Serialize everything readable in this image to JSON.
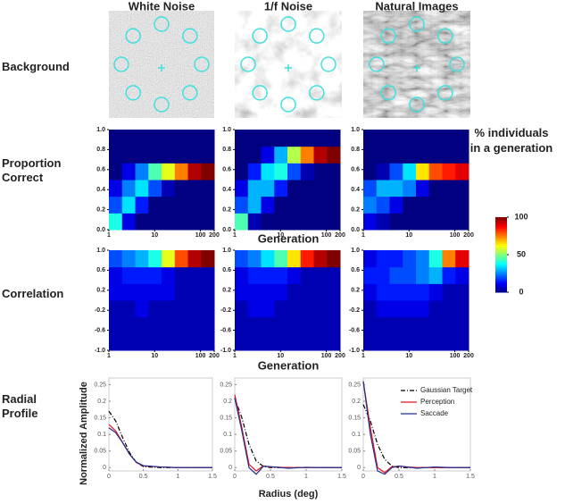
{
  "figure": {
    "columns": [
      "White Noise",
      "1/f Noise",
      "Natural Images"
    ],
    "rows": [
      [
        "Background"
      ],
      [
        "Proportion",
        "Correct"
      ],
      [
        "Correlation"
      ],
      [
        "Radial",
        "Profile"
      ]
    ],
    "generation_labels": [
      "Generation",
      "Generation"
    ]
  },
  "chart_data": [
    {
      "type": "heatmap",
      "xscale": "log",
      "xlim": [
        1,
        200
      ],
      "xticks": [
        1,
        10,
        100,
        200
      ],
      "ylim": [
        0,
        1
      ],
      "yticks": [
        {
          "value": 0,
          "label": "0.0"
        },
        0.2,
        0.4,
        0.6,
        0.8,
        {
          "value": 1,
          "label": "1.0"
        }
      ],
      "zlim": [
        0,
        100
      ],
      "colormap": "jet",
      "z": [
        [
          40,
          10,
          0,
          0,
          0,
          0,
          0,
          0
        ],
        [
          20,
          35,
          15,
          0,
          0,
          0,
          0,
          0
        ],
        [
          10,
          25,
          35,
          20,
          5,
          0,
          0,
          0
        ],
        [
          0,
          10,
          25,
          45,
          60,
          75,
          95,
          100
        ],
        [
          0,
          0,
          0,
          0,
          0,
          0,
          0,
          0
        ],
        [
          0,
          0,
          0,
          0,
          0,
          0,
          0,
          0
        ]
      ]
    },
    {
      "type": "heatmap",
      "xscale": "log",
      "xlim": [
        1,
        200
      ],
      "xticks": [
        1,
        10,
        100,
        200
      ],
      "ylim": [
        0,
        1
      ],
      "yticks": [
        {
          "value": 0,
          "label": "0.0"
        },
        0.2,
        0.4,
        0.6,
        0.8,
        {
          "value": 1,
          "label": "1.0"
        }
      ],
      "zlim": [
        0,
        100
      ],
      "colormap": "jet",
      "z": [
        [
          45,
          5,
          0,
          0,
          0,
          0,
          0,
          0
        ],
        [
          20,
          30,
          10,
          0,
          0,
          0,
          0,
          0
        ],
        [
          10,
          30,
          30,
          15,
          0,
          0,
          0,
          0
        ],
        [
          0,
          15,
          35,
          40,
          20,
          5,
          0,
          0
        ],
        [
          0,
          0,
          10,
          30,
          55,
          75,
          95,
          100
        ],
        [
          0,
          0,
          0,
          0,
          0,
          0,
          0,
          0
        ]
      ]
    },
    {
      "type": "heatmap",
      "xscale": "log",
      "xlim": [
        1,
        200
      ],
      "xticks": [
        1,
        10,
        100,
        200
      ],
      "ylim": [
        0,
        1
      ],
      "yticks": [
        {
          "value": 0,
          "label": "0.0"
        },
        0.2,
        0.4,
        0.6,
        0.8,
        {
          "value": 1,
          "label": "1.0"
        }
      ],
      "zlim": [
        0,
        100
      ],
      "colormap": "jet",
      "z": [
        [
          10,
          5,
          0,
          0,
          0,
          0,
          0,
          0
        ],
        [
          25,
          20,
          10,
          0,
          0,
          0,
          0,
          0
        ],
        [
          20,
          30,
          30,
          25,
          10,
          0,
          0,
          0
        ],
        [
          0,
          5,
          20,
          35,
          65,
          80,
          85,
          90
        ],
        [
          0,
          0,
          0,
          0,
          0,
          0,
          0,
          0
        ],
        [
          0,
          0,
          0,
          0,
          0,
          0,
          0,
          0
        ]
      ]
    },
    {
      "type": "heatmap",
      "xscale": "log",
      "xlim": [
        1,
        200
      ],
      "xticks": [
        1,
        10,
        100,
        200
      ],
      "ylim": [
        -1,
        1
      ],
      "yticks": [
        {
          "value": -1,
          "label": "-1.0"
        },
        -0.6,
        -0.2,
        0.2,
        0.6,
        {
          "value": 1,
          "label": "1.0"
        }
      ],
      "zlim": [
        0,
        100
      ],
      "colormap": "jet",
      "z": [
        [
          5,
          5,
          5,
          5,
          5,
          5,
          5,
          5
        ],
        [
          5,
          5,
          5,
          5,
          5,
          5,
          5,
          5
        ],
        [
          5,
          5,
          10,
          5,
          5,
          5,
          5,
          5
        ],
        [
          10,
          10,
          10,
          10,
          10,
          5,
          5,
          5
        ],
        [
          10,
          15,
          15,
          15,
          10,
          5,
          5,
          5
        ],
        [
          20,
          25,
          30,
          40,
          60,
          80,
          95,
          100
        ]
      ]
    },
    {
      "type": "heatmap",
      "xscale": "log",
      "xlim": [
        1,
        200
      ],
      "xticks": [
        1,
        10,
        100,
        200
      ],
      "ylim": [
        -1,
        1
      ],
      "yticks": [
        {
          "value": -1,
          "label": "-1.0"
        },
        -0.6,
        -0.2,
        0.2,
        0.6,
        {
          "value": 1,
          "label": "1.0"
        }
      ],
      "zlim": [
        0,
        100
      ],
      "colormap": "jet",
      "z": [
        [
          5,
          5,
          5,
          5,
          5,
          5,
          5,
          5
        ],
        [
          5,
          5,
          5,
          5,
          5,
          5,
          5,
          5
        ],
        [
          5,
          10,
          10,
          5,
          5,
          5,
          5,
          5
        ],
        [
          10,
          10,
          10,
          10,
          5,
          5,
          5,
          5
        ],
        [
          10,
          15,
          15,
          15,
          10,
          5,
          5,
          5
        ],
        [
          20,
          25,
          35,
          45,
          65,
          85,
          95,
          100
        ]
      ]
    },
    {
      "type": "heatmap",
      "xscale": "log",
      "xlim": [
        1,
        200
      ],
      "xticks": [
        1,
        10,
        100,
        200
      ],
      "ylim": [
        -1,
        1
      ],
      "yticks": [
        {
          "value": -1,
          "label": "-1.0"
        },
        -0.6,
        -0.2,
        0.2,
        0.6,
        {
          "value": 1,
          "label": "1.0"
        }
      ],
      "zlim": [
        0,
        100
      ],
      "colormap": "jet",
      "z": [
        [
          5,
          5,
          5,
          5,
          5,
          5,
          5,
          5
        ],
        [
          5,
          5,
          5,
          5,
          5,
          5,
          5,
          5
        ],
        [
          5,
          10,
          10,
          10,
          10,
          5,
          5,
          5
        ],
        [
          10,
          15,
          15,
          15,
          15,
          10,
          5,
          5
        ],
        [
          15,
          15,
          20,
          20,
          25,
          30,
          15,
          10
        ],
        [
          10,
          15,
          15,
          20,
          25,
          40,
          75,
          90
        ]
      ]
    },
    {
      "type": "line",
      "ylabel": "Normalized Amplitude",
      "xlim": [
        0,
        1.5
      ],
      "xticks": [
        0,
        0.5,
        1,
        1.5
      ],
      "ylim": [
        -0.01,
        0.27
      ],
      "yticks": [
        0,
        0.05,
        0.1,
        0.15,
        0.2,
        0.25
      ],
      "x": [
        0,
        0.1,
        0.2,
        0.3,
        0.4,
        0.5,
        0.75,
        1,
        1.25,
        1.5
      ],
      "series": [
        {
          "color": "#000000",
          "dash": true,
          "values": [
            0.17,
            0.14,
            0.09,
            0.045,
            0.015,
            0.003,
            0,
            0,
            0,
            0
          ]
        },
        {
          "color": "#e8141e",
          "values": [
            0.13,
            0.11,
            0.075,
            0.04,
            0.015,
            0.005,
            0.002,
            0,
            0,
            0
          ]
        },
        {
          "color": "#1f2f8f",
          "values": [
            0.12,
            0.105,
            0.075,
            0.04,
            0.016,
            0.006,
            0.002,
            0,
            0,
            0
          ]
        }
      ]
    },
    {
      "type": "line",
      "xlabel": "Radius (deg)",
      "xlim": [
        0,
        1.5
      ],
      "xticks": [
        0,
        0.5,
        1,
        1.5
      ],
      "ylim": [
        -0.01,
        0.27
      ],
      "yticks": [
        0,
        0.05,
        0.1,
        0.15,
        0.2,
        0.25
      ],
      "x": [
        0,
        0.1,
        0.2,
        0.3,
        0.4,
        0.5,
        0.75,
        1,
        1.25,
        1.5
      ],
      "series": [
        {
          "color": "#000000",
          "dash": true,
          "values": [
            0.21,
            0.15,
            0.07,
            0.02,
            0.004,
            0,
            0,
            0,
            0,
            0
          ]
        },
        {
          "color": "#e8141e",
          "values": [
            0.22,
            0.12,
            0.01,
            -0.01,
            0.005,
            0.002,
            0,
            0,
            0,
            0
          ]
        },
        {
          "color": "#1f2f8f",
          "values": [
            0.21,
            0.11,
            0,
            -0.02,
            0.004,
            0.003,
            -0.002,
            0.001,
            0,
            0
          ]
        }
      ]
    },
    {
      "type": "line",
      "legend": "upper-right",
      "xlim": [
        0,
        1.5
      ],
      "xticks": [
        0,
        0.5,
        1,
        1.5
      ],
      "ylim": [
        -0.01,
        0.27
      ],
      "yticks": [
        0,
        0.05,
        0.1,
        0.15,
        0.2,
        0.25
      ],
      "x": [
        0,
        0.1,
        0.2,
        0.3,
        0.4,
        0.5,
        0.75,
        1,
        1.25,
        1.5
      ],
      "series": [
        {
          "name": "Gaussian Target",
          "color": "#000000",
          "dash": true,
          "values": [
            0.19,
            0.14,
            0.07,
            0.025,
            0.005,
            0,
            0,
            0,
            0,
            0
          ]
        },
        {
          "name": "Perception",
          "color": "#e8141e",
          "values": [
            0.26,
            0.12,
            0,
            -0.015,
            0.003,
            0.004,
            0,
            0,
            0,
            0
          ]
        },
        {
          "name": "Saccade",
          "color": "#1f2f8f",
          "values": [
            0.26,
            0.1,
            -0.01,
            -0.02,
            0,
            0.005,
            -0.002,
            0.002,
            0,
            0
          ]
        }
      ]
    },
    {
      "type": "colorbar",
      "title": [
        "% individuals",
        "in a generation"
      ],
      "colormap": "jet",
      "ylim": [
        0,
        100
      ],
      "yticks": [
        0,
        50,
        100
      ]
    }
  ]
}
